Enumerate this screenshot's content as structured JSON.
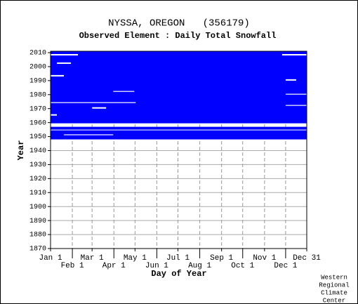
{
  "chart_data": {
    "type": "raster",
    "title": "NYSSA, OREGON   (356179)",
    "subtitle": "Observed Element : Daily Total Snowfall",
    "x_label": "Day of Year",
    "y_label": "Year",
    "credit": [
      "Western",
      "Regional",
      "Climate",
      "Center"
    ],
    "color": "#0000ff",
    "missing_color": "#ffffff",
    "xlim": [
      1,
      365
    ],
    "ylim": [
      1870,
      2011
    ],
    "xticks": [
      {
        "value": 1,
        "label": "Jan 1"
      },
      {
        "value": 32,
        "label": "Feb 1"
      },
      {
        "value": 60,
        "label": "Mar 1"
      },
      {
        "value": 91,
        "label": "Apr 1"
      },
      {
        "value": 121,
        "label": "May 1"
      },
      {
        "value": 152,
        "label": "Jun 1"
      },
      {
        "value": 182,
        "label": "Jul 1"
      },
      {
        "value": 213,
        "label": "Aug 1"
      },
      {
        "value": 244,
        "label": "Sep 1"
      },
      {
        "value": 274,
        "label": "Oct 1"
      },
      {
        "value": 305,
        "label": "Nov 1"
      },
      {
        "value": 335,
        "label": "Dec 1"
      },
      {
        "value": 365,
        "label": "Dec 31"
      }
    ],
    "yticks": [
      1870,
      1880,
      1890,
      1900,
      1910,
      1920,
      1930,
      1940,
      1950,
      1960,
      1970,
      1980,
      1990,
      2000,
      2010
    ],
    "grid": true,
    "filled": [
      [
        1948,
        1957,
        1,
        365
      ],
      [
        1959.5,
        2011,
        1,
        365
      ]
    ],
    "missing": [
      [
        1974,
        1974.6,
        1,
        122
      ],
      [
        1982,
        1982.6,
        90,
        120
      ],
      [
        1980,
        1980.6,
        335,
        365
      ],
      [
        1972,
        1972.6,
        335,
        365
      ],
      [
        1954.5,
        1955,
        1,
        365
      ],
      [
        1951,
        1951.6,
        20,
        90
      ],
      [
        1993,
        1994,
        1,
        20
      ],
      [
        1965,
        1966,
        1,
        10
      ],
      [
        2008,
        2009,
        1,
        40
      ],
      [
        2002,
        2003,
        10,
        30
      ],
      [
        2008,
        2009,
        330,
        365
      ],
      [
        1990,
        1991,
        335,
        350
      ],
      [
        1970,
        1971,
        60,
        80
      ]
    ]
  }
}
